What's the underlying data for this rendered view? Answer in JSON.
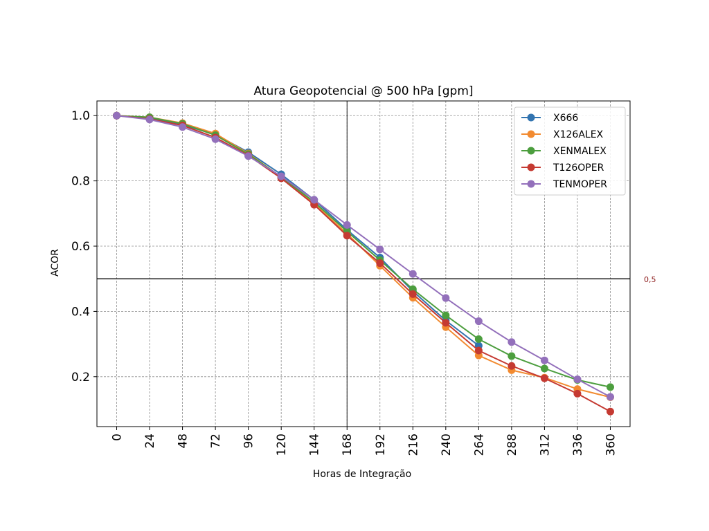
{
  "chart_data": {
    "type": "line",
    "title": "Atura Geopotencial @ 500 hPa [gpm]",
    "xlabel": "Horas de Integração",
    "ylabel": "ACOR",
    "x": [
      0,
      24,
      48,
      72,
      96,
      120,
      144,
      168,
      192,
      216,
      240,
      264,
      288,
      312,
      336,
      360
    ],
    "x_tick_labels": [
      "0",
      "24",
      "48",
      "72",
      "96",
      "120",
      "144",
      "168",
      "192",
      "216",
      "240",
      "264",
      "288",
      "312",
      "336",
      "360"
    ],
    "y_ticks": [
      0.2,
      0.4,
      0.6,
      0.8,
      1.0
    ],
    "y_tick_labels": [
      "0.2",
      "0.4",
      "0.6",
      "0.8",
      "1.0"
    ],
    "xlim": [
      -14.4,
      374.4
    ],
    "ylim": [
      0.047,
      1.045
    ],
    "grid": true,
    "legend_position": "top-right",
    "reference_lines": {
      "horizontal": {
        "y": 0.5,
        "label": "0,5"
      },
      "vertical": {
        "x": 168
      }
    },
    "series": [
      {
        "name": "X666",
        "color": "#3274b0",
        "values": [
          1.0,
          0.993,
          0.972,
          0.942,
          0.888,
          0.82,
          0.742,
          0.65,
          0.565,
          0.462,
          0.372,
          0.295,
          null,
          null,
          null,
          null
        ]
      },
      {
        "name": "X126ALEX",
        "color": "#f28a30",
        "values": [
          1.0,
          0.995,
          0.977,
          0.945,
          0.884,
          0.812,
          0.73,
          0.638,
          0.54,
          0.442,
          0.352,
          0.265,
          0.22,
          0.197,
          0.162,
          0.137
        ]
      },
      {
        "name": "XENMALEX",
        "color": "#4c9e3e",
        "values": [
          1.0,
          0.995,
          0.975,
          0.94,
          0.882,
          0.812,
          0.735,
          0.645,
          0.557,
          0.468,
          0.388,
          0.315,
          0.263,
          0.225,
          0.19,
          0.168
        ]
      },
      {
        "name": "T126OPER",
        "color": "#c53a32",
        "values": [
          1.0,
          0.99,
          0.97,
          0.933,
          0.878,
          0.808,
          0.727,
          0.632,
          0.548,
          0.453,
          0.365,
          0.28,
          0.233,
          0.195,
          0.148,
          0.093
        ]
      },
      {
        "name": "TENMOPER",
        "color": "#9370bb",
        "values": [
          1.0,
          0.988,
          0.965,
          0.928,
          0.876,
          0.814,
          0.742,
          0.665,
          0.59,
          0.515,
          0.441,
          0.37,
          0.306,
          0.25,
          0.192,
          0.138
        ]
      }
    ]
  }
}
